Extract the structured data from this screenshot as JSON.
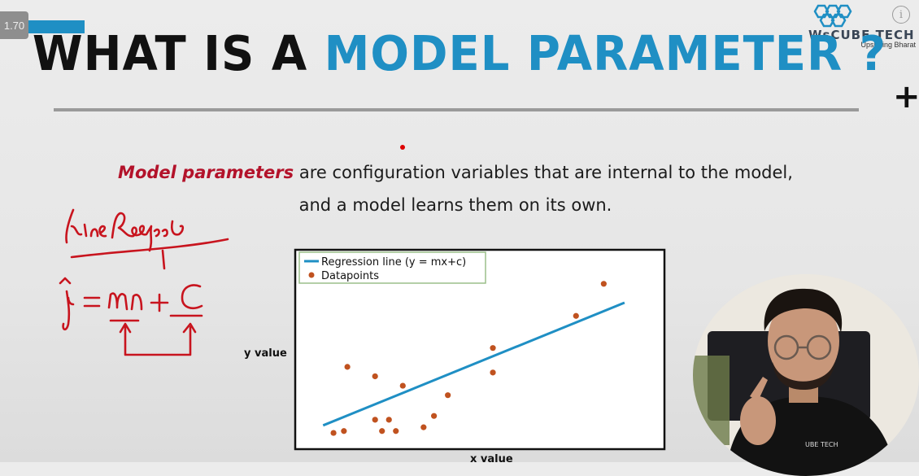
{
  "player": {
    "speed": "1.70",
    "progress": 0.09
  },
  "brand": {
    "name": "WsCUBE TECH",
    "tagline": "Upskilling Bharat"
  },
  "title": {
    "part1": "WHAT IS A ",
    "part2": "MODEL PARAMETER ?"
  },
  "definition": {
    "highlight": "Model parameters",
    "line1_rest": " are configuration variables that are internal to the model,",
    "line2": "and a model learns them on its own."
  },
  "colors": {
    "accent": "#1f8fc4",
    "highlight": "#b3122a",
    "points": "#c0521f",
    "ink": "#c8141e"
  },
  "icons": {
    "info": "info-icon",
    "plus": "plus-icon"
  },
  "chart_data": {
    "type": "scatter",
    "title": "",
    "xlabel": "x value",
    "ylabel": "y value",
    "xlim": [
      0,
      100
    ],
    "ylim": [
      0,
      100
    ],
    "legend": [
      "Regression line (y = mx+c)",
      "Datapoints"
    ],
    "legend_position": "top-left",
    "line": {
      "x": [
        5,
        92
      ],
      "y": [
        10,
        75
      ]
    },
    "points": [
      {
        "x": 8,
        "y": 6
      },
      {
        "x": 11,
        "y": 7
      },
      {
        "x": 12,
        "y": 41
      },
      {
        "x": 20,
        "y": 13
      },
      {
        "x": 22,
        "y": 7
      },
      {
        "x": 24,
        "y": 13
      },
      {
        "x": 26,
        "y": 7
      },
      {
        "x": 28,
        "y": 31
      },
      {
        "x": 34,
        "y": 9
      },
      {
        "x": 37,
        "y": 15
      },
      {
        "x": 41,
        "y": 26
      },
      {
        "x": 54,
        "y": 51
      },
      {
        "x": 54,
        "y": 38
      },
      {
        "x": 78,
        "y": 68
      },
      {
        "x": 86,
        "y": 85
      },
      {
        "x": 20,
        "y": 36
      }
    ]
  }
}
